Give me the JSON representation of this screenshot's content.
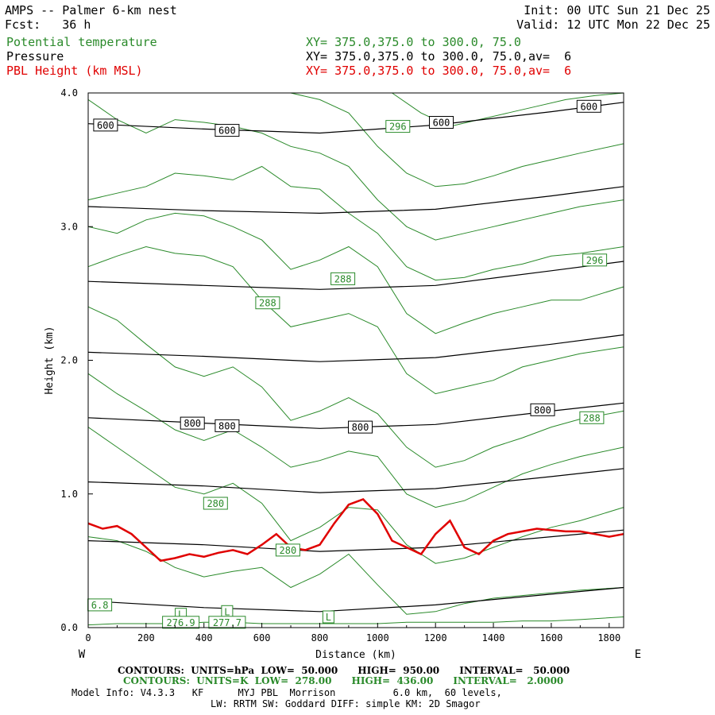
{
  "header": {
    "title": "AMPS -- Palmer 6-km nest",
    "fcst": "Fcst:   36 h",
    "init": "Init: 00 UTC Sun 21 Dec 25",
    "valid": "Valid: 12 UTC Mon 22 Dec 25",
    "fields": [
      {
        "name": "Potential temperature",
        "xy": "XY= 375.0,375.0 to 300.0, 75.0",
        "color": "#2a8a2a"
      },
      {
        "name": "Pressure",
        "xy": "XY= 375.0,375.0 to 300.0, 75.0,av=  6",
        "color": "#000000"
      },
      {
        "name": "PBL Height (km MSL)",
        "xy": "XY= 375.0,375.0 to 300.0, 75.0,av=  6",
        "color": "#e00000"
      }
    ]
  },
  "chart_data": {
    "type": "line",
    "xlabel": "Distance (km)",
    "ylabel": "Height (km)",
    "xlim": [
      0,
      1850
    ],
    "ylim": [
      0,
      4.0
    ],
    "x_ticks": [
      0,
      200,
      400,
      600,
      800,
      1000,
      1200,
      1400,
      1600,
      1800
    ],
    "y_ticks": [
      0.0,
      1.0,
      2.0,
      3.0,
      4.0
    ],
    "left_end_label": "W",
    "right_end_label": "E",
    "pressure_contours": {
      "color": "#000000",
      "lines": [
        {
          "x": [
            0,
            400,
            800,
            1200,
            1600,
            1850
          ],
          "y": [
            0.2,
            0.15,
            0.12,
            0.17,
            0.25,
            0.3
          ]
        },
        {
          "x": [
            0,
            400,
            800,
            1200,
            1600,
            1850
          ],
          "y": [
            0.65,
            0.62,
            0.57,
            0.6,
            0.68,
            0.73
          ]
        },
        {
          "x": [
            0,
            400,
            800,
            1200,
            1600,
            1850
          ],
          "y": [
            1.09,
            1.06,
            1.01,
            1.04,
            1.13,
            1.19
          ]
        },
        {
          "x": [
            0,
            400,
            800,
            1200,
            1600,
            1850
          ],
          "y": [
            1.57,
            1.53,
            1.49,
            1.52,
            1.62,
            1.68
          ]
        },
        {
          "x": [
            0,
            400,
            800,
            1200,
            1600,
            1850
          ],
          "y": [
            2.06,
            2.03,
            1.99,
            2.02,
            2.12,
            2.19
          ]
        },
        {
          "x": [
            0,
            400,
            800,
            1200,
            1600,
            1850
          ],
          "y": [
            2.59,
            2.56,
            2.53,
            2.56,
            2.67,
            2.74
          ]
        },
        {
          "x": [
            0,
            400,
            800,
            1200,
            1600,
            1850
          ],
          "y": [
            3.15,
            3.12,
            3.1,
            3.13,
            3.23,
            3.3
          ]
        },
        {
          "x": [
            0,
            400,
            800,
            1200,
            1600,
            1850
          ],
          "y": [
            3.77,
            3.73,
            3.7,
            3.76,
            3.86,
            3.93
          ]
        }
      ],
      "labels": [
        {
          "text": "800",
          "x": 360,
          "y": 1.53
        },
        {
          "text": "800",
          "x": 480,
          "y": 1.51
        },
        {
          "text": "800",
          "x": 940,
          "y": 1.5
        },
        {
          "text": "800",
          "x": 1570,
          "y": 1.63
        },
        {
          "text": "600",
          "x": 60,
          "y": 3.76
        },
        {
          "text": "600",
          "x": 480,
          "y": 3.72
        },
        {
          "text": "600",
          "x": 1220,
          "y": 3.78
        },
        {
          "text": "600",
          "x": 1730,
          "y": 3.9
        }
      ]
    },
    "theta_contours": {
      "color": "#2a8a2a",
      "lines": [
        {
          "x": [
            0,
            100,
            200,
            300,
            400,
            500,
            600,
            700,
            800,
            900,
            1000,
            1100,
            1200,
            1300,
            1400,
            1500,
            1600,
            1700,
            1850
          ],
          "y": [
            0.02,
            0.03,
            0.03,
            0.03,
            0.04,
            0.04,
            0.03,
            0.03,
            0.03,
            0.03,
            0.03,
            0.04,
            0.04,
            0.04,
            0.04,
            0.05,
            0.05,
            0.06,
            0.08
          ]
        },
        {
          "x": [
            0,
            100,
            200,
            300,
            400,
            500,
            600,
            700,
            800,
            900,
            1000,
            1100,
            1200,
            1300,
            1400,
            1500,
            1600,
            1700,
            1850
          ],
          "y": [
            0.68,
            0.65,
            0.57,
            0.45,
            0.38,
            0.42,
            0.45,
            0.3,
            0.4,
            0.55,
            0.32,
            0.1,
            0.12,
            0.18,
            0.22,
            0.24,
            0.26,
            0.28,
            0.3
          ]
        },
        {
          "x": [
            0,
            100,
            200,
            300,
            400,
            500,
            600,
            700,
            800,
            900,
            1000,
            1100,
            1200,
            1300,
            1400,
            1500,
            1600,
            1700,
            1850
          ],
          "y": [
            1.5,
            1.35,
            1.2,
            1.05,
            1.0,
            1.08,
            0.93,
            0.65,
            0.75,
            0.9,
            0.88,
            0.62,
            0.48,
            0.52,
            0.6,
            0.68,
            0.75,
            0.8,
            0.9
          ]
        },
        {
          "x": [
            0,
            100,
            200,
            300,
            400,
            500,
            600,
            700,
            800,
            900,
            1000,
            1100,
            1200,
            1300,
            1400,
            1500,
            1600,
            1700,
            1850
          ],
          "y": [
            1.9,
            1.75,
            1.62,
            1.48,
            1.4,
            1.48,
            1.35,
            1.2,
            1.25,
            1.32,
            1.28,
            1.0,
            0.9,
            0.95,
            1.05,
            1.15,
            1.22,
            1.28,
            1.35
          ]
        },
        {
          "x": [
            0,
            100,
            200,
            300,
            400,
            500,
            600,
            700,
            800,
            900,
            1000,
            1100,
            1200,
            1300,
            1400,
            1500,
            1600,
            1700,
            1850
          ],
          "y": [
            2.4,
            2.3,
            2.12,
            1.95,
            1.88,
            1.95,
            1.8,
            1.55,
            1.62,
            1.72,
            1.6,
            1.35,
            1.2,
            1.25,
            1.35,
            1.42,
            1.5,
            1.56,
            1.62
          ]
        },
        {
          "x": [
            0,
            100,
            200,
            300,
            400,
            500,
            600,
            700,
            800,
            900,
            1000,
            1100,
            1200,
            1300,
            1400,
            1500,
            1600,
            1700,
            1850
          ],
          "y": [
            2.7,
            2.78,
            2.85,
            2.8,
            2.78,
            2.7,
            2.45,
            2.25,
            2.3,
            2.35,
            2.25,
            1.9,
            1.75,
            1.8,
            1.85,
            1.95,
            2.0,
            2.05,
            2.1
          ]
        },
        {
          "x": [
            0,
            100,
            200,
            300,
            400,
            500,
            600,
            700,
            800,
            900,
            1000,
            1100,
            1200,
            1300,
            1400,
            1500,
            1600,
            1700,
            1850
          ],
          "y": [
            3.0,
            2.95,
            3.05,
            3.1,
            3.08,
            3.0,
            2.9,
            2.68,
            2.75,
            2.85,
            2.7,
            2.35,
            2.2,
            2.28,
            2.35,
            2.4,
            2.45,
            2.45,
            2.55
          ]
        },
        {
          "x": [
            0,
            100,
            200,
            300,
            400,
            500,
            600,
            700,
            800,
            900,
            1000,
            1100,
            1200,
            1300,
            1400,
            1500,
            1600,
            1700,
            1850
          ],
          "y": [
            3.2,
            3.25,
            3.3,
            3.4,
            3.38,
            3.35,
            3.45,
            3.3,
            3.28,
            3.1,
            2.95,
            2.7,
            2.6,
            2.62,
            2.68,
            2.72,
            2.78,
            2.8,
            2.85
          ]
        },
        {
          "x": [
            0,
            100,
            200,
            300,
            400,
            500,
            600,
            700,
            800,
            900,
            1000,
            1100,
            1200,
            1300,
            1400,
            1500,
            1600,
            1700,
            1850
          ],
          "y": [
            3.95,
            3.8,
            3.7,
            3.8,
            3.78,
            3.75,
            3.7,
            3.6,
            3.55,
            3.45,
            3.2,
            3.0,
            2.9,
            2.95,
            3.0,
            3.05,
            3.1,
            3.15,
            3.2
          ]
        },
        {
          "x": [
            700,
            800,
            900,
            1000,
            1100,
            1200,
            1300,
            1400,
            1500,
            1600,
            1700,
            1850
          ],
          "y": [
            4.0,
            3.95,
            3.85,
            3.6,
            3.4,
            3.3,
            3.32,
            3.38,
            3.45,
            3.5,
            3.55,
            3.62
          ]
        },
        {
          "x": [
            1050,
            1150,
            1250,
            1350,
            1450,
            1550,
            1650,
            1750,
            1850
          ],
          "y": [
            4.0,
            3.85,
            3.75,
            3.8,
            3.85,
            3.9,
            3.95,
            3.98,
            4.0
          ]
        }
      ],
      "labels": [
        {
          "text": "296",
          "x": 1070,
          "y": 3.75
        },
        {
          "text": "296",
          "x": 1750,
          "y": 2.75
        },
        {
          "text": "288",
          "x": 880,
          "y": 2.61
        },
        {
          "text": "288",
          "x": 620,
          "y": 2.43
        },
        {
          "text": "288",
          "x": 1740,
          "y": 1.57
        },
        {
          "text": "280",
          "x": 440,
          "y": 0.93
        },
        {
          "text": "280",
          "x": 690,
          "y": 0.58
        },
        {
          "text": "L",
          "x": 320,
          "y": 0.1
        },
        {
          "text": "276.9",
          "x": 320,
          "y": 0.04
        },
        {
          "text": "L",
          "x": 480,
          "y": 0.12
        },
        {
          "text": "277.7",
          "x": 480,
          "y": 0.04
        },
        {
          "text": "L",
          "x": 830,
          "y": 0.08
        },
        {
          "text": "6.8",
          "x": 40,
          "y": 0.17
        }
      ]
    },
    "pbl_height": {
      "name": "PBL Height (km MSL)",
      "color": "#e00000",
      "x": [
        0,
        50,
        100,
        150,
        200,
        250,
        300,
        350,
        400,
        450,
        500,
        550,
        600,
        650,
        700,
        750,
        800,
        850,
        900,
        950,
        1000,
        1050,
        1100,
        1150,
        1200,
        1250,
        1300,
        1350,
        1400,
        1450,
        1500,
        1550,
        1600,
        1650,
        1700,
        1750,
        1800,
        1850
      ],
      "y": [
        0.78,
        0.74,
        0.76,
        0.7,
        0.6,
        0.5,
        0.52,
        0.55,
        0.53,
        0.56,
        0.58,
        0.55,
        0.62,
        0.7,
        0.6,
        0.58,
        0.62,
        0.78,
        0.92,
        0.96,
        0.85,
        0.65,
        0.6,
        0.55,
        0.7,
        0.8,
        0.6,
        0.55,
        0.65,
        0.7,
        0.72,
        0.74,
        0.73,
        0.72,
        0.72,
        0.7,
        0.68,
        0.7
      ]
    }
  },
  "footer": {
    "line1": {
      "label": "CONTOURS:  UNITS=hPa  LOW=  50.000      HIGH=  950.00      INTERVAL=   50.000",
      "color": "#000000"
    },
    "line2": {
      "label": "CONTOURS:  UNITS=K  LOW=  278.00      HIGH=  436.00      INTERVAL=   2.0000",
      "color": "#2a8a2a"
    },
    "line3": "Model Info: V4.3.3   KF      MYJ PBL  Morrison          6.0 km,  60 levels,",
    "line4": "LW: RRTM SW: Goddard DIFF: simple KM: 2D Smagor"
  }
}
